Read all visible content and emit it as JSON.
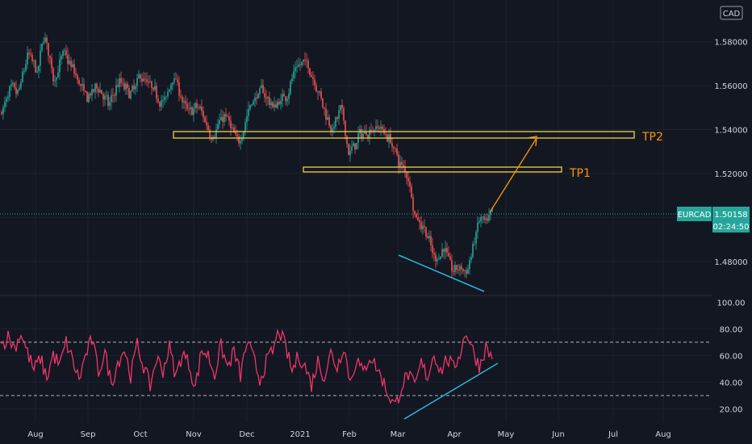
{
  "chart_data": {
    "type": "candlestick",
    "symbol": "EURCAD",
    "currency_label": "CAD",
    "current_price": "1.50158",
    "countdown": "02:24:50",
    "price_ylim": [
      1.4645,
      1.599
    ],
    "price_ticks": [
      "1.58000",
      "1.56000",
      "1.54000",
      "1.52000",
      "1.48000"
    ],
    "rsi_ylim": [
      10,
      105
    ],
    "rsi_ticks": [
      "100.00",
      "80.00",
      "60.00",
      "40.00",
      "20.00"
    ],
    "rsi_levels": [
      70,
      30
    ],
    "x_labels": [
      "Aug",
      "Sep",
      "Oct",
      "Nov",
      "Dec",
      "2021",
      "Feb",
      "Mar",
      "Apr",
      "May",
      "Jun",
      "Jul",
      "Aug"
    ],
    "price_path": [
      [
        0,
        1.548
      ],
      [
        5,
        1.558
      ],
      [
        10,
        1.556
      ],
      [
        16,
        1.575
      ],
      [
        22,
        1.565
      ],
      [
        26,
        1.585
      ],
      [
        32,
        1.562
      ],
      [
        38,
        1.575
      ],
      [
        46,
        1.564
      ],
      [
        52,
        1.554
      ],
      [
        60,
        1.56
      ],
      [
        66,
        1.55
      ],
      [
        72,
        1.562
      ],
      [
        80,
        1.556
      ],
      [
        86,
        1.565
      ],
      [
        94,
        1.557
      ],
      [
        101,
        1.552
      ],
      [
        106,
        1.566
      ],
      [
        114,
        1.548
      ],
      [
        122,
        1.55
      ],
      [
        130,
        1.537
      ],
      [
        138,
        1.547
      ],
      [
        146,
        1.533
      ],
      [
        154,
        1.552
      ],
      [
        161,
        1.558
      ],
      [
        168,
        1.55
      ],
      [
        176,
        1.556
      ],
      [
        182,
        1.568
      ],
      [
        188,
        1.571
      ],
      [
        194,
        1.562
      ],
      [
        200,
        1.548
      ],
      [
        205,
        1.54
      ],
      [
        210,
        1.55
      ],
      [
        215,
        1.528
      ],
      [
        221,
        1.537
      ],
      [
        228,
        1.54
      ],
      [
        233,
        1.542
      ],
      [
        240,
        1.536
      ],
      [
        246,
        1.525
      ],
      [
        252,
        1.518
      ],
      [
        256,
        1.5
      ],
      [
        262,
        1.495
      ],
      [
        268,
        1.48
      ],
      [
        274,
        1.487
      ],
      [
        279,
        1.475
      ],
      [
        284,
        1.478
      ],
      [
        288,
        1.474
      ],
      [
        292,
        1.488
      ],
      [
        296,
        1.5
      ],
      [
        300,
        1.496
      ],
      [
        304,
        1.502
      ]
    ],
    "rsi_path": [
      [
        0,
        68
      ],
      [
        4,
        74
      ],
      [
        8,
        66
      ],
      [
        12,
        77
      ],
      [
        16,
        62
      ],
      [
        20,
        49
      ],
      [
        24,
        58
      ],
      [
        28,
        43
      ],
      [
        32,
        61
      ],
      [
        36,
        52
      ],
      [
        40,
        70
      ],
      [
        44,
        56
      ],
      [
        48,
        42
      ],
      [
        52,
        60
      ],
      [
        56,
        72
      ],
      [
        60,
        48
      ],
      [
        64,
        62
      ],
      [
        68,
        39
      ],
      [
        72,
        55
      ],
      [
        76,
        65
      ],
      [
        80,
        45
      ],
      [
        84,
        68
      ],
      [
        88,
        52
      ],
      [
        92,
        37
      ],
      [
        96,
        58
      ],
      [
        100,
        49
      ],
      [
        104,
        66
      ],
      [
        108,
        44
      ],
      [
        112,
        62
      ],
      [
        116,
        54
      ],
      [
        120,
        36
      ],
      [
        124,
        64
      ],
      [
        128,
        60
      ],
      [
        132,
        46
      ],
      [
        136,
        67
      ],
      [
        140,
        51
      ],
      [
        144,
        63
      ],
      [
        148,
        45
      ],
      [
        152,
        70
      ],
      [
        156,
        58
      ],
      [
        160,
        42
      ],
      [
        164,
        55
      ],
      [
        168,
        63
      ],
      [
        172,
        79
      ],
      [
        176,
        66
      ],
      [
        180,
        48
      ],
      [
        184,
        60
      ],
      [
        188,
        52
      ],
      [
        192,
        38
      ],
      [
        196,
        56
      ],
      [
        200,
        44
      ],
      [
        204,
        62
      ],
      [
        208,
        51
      ],
      [
        212,
        68
      ],
      [
        216,
        40
      ],
      [
        220,
        58
      ],
      [
        224,
        46
      ],
      [
        228,
        60
      ],
      [
        232,
        52
      ],
      [
        236,
        42
      ],
      [
        240,
        30
      ],
      [
        244,
        22
      ],
      [
        248,
        38
      ],
      [
        252,
        46
      ],
      [
        256,
        36
      ],
      [
        260,
        54
      ],
      [
        264,
        44
      ],
      [
        268,
        62
      ],
      [
        272,
        48
      ],
      [
        276,
        58
      ],
      [
        280,
        50
      ],
      [
        284,
        62
      ],
      [
        288,
        78
      ],
      [
        292,
        64
      ],
      [
        296,
        52
      ],
      [
        300,
        66
      ],
      [
        304,
        58
      ]
    ]
  },
  "annotations": {
    "tp1_label": "TP1",
    "tp2_label": "TP2"
  },
  "colors": {
    "background": "#131722",
    "up_candle": "#26a69a",
    "down_candle": "#ef5350",
    "rsi_line": "#f0356b",
    "zone": "#f0d24c",
    "tp_label": "#ff9800",
    "target_arrow": "#ff9800",
    "trendline": "#29b6d9",
    "price_tag": "#26a69a",
    "grid": "#1e2230"
  }
}
